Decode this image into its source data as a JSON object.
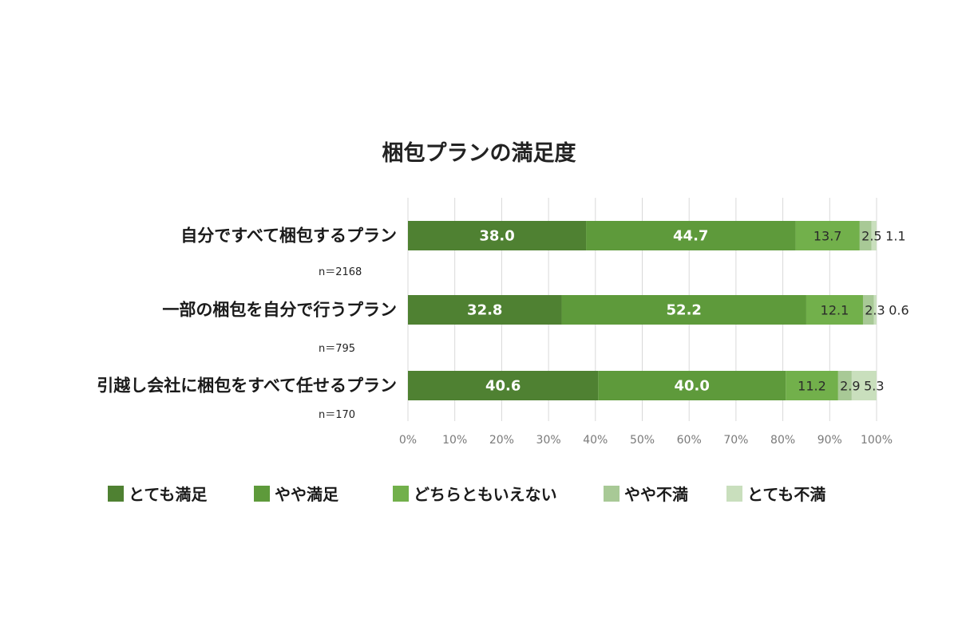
{
  "chart_data": {
    "type": "bar",
    "orientation": "horizontal",
    "stacked": true,
    "title": "梱包プランの満足度",
    "categories": [
      "自分ですべて梱包するプラン",
      "一部の梱包を自分で行うプラン",
      "引越し会社に梱包をすべて任せるプラン"
    ],
    "sample_sizes": [
      "n＝2168",
      "n＝795",
      "n＝170"
    ],
    "series": [
      {
        "name": "とても満足",
        "values": [
          38.0,
          32.8,
          40.6
        ],
        "labels": [
          "38.0",
          "32.8",
          "40.6"
        ],
        "color": "#4f8132"
      },
      {
        "name": "やや満足",
        "values": [
          44.7,
          52.2,
          40.0
        ],
        "labels": [
          "44.7",
          "52.2",
          "40.0"
        ],
        "color": "#5e9a3b"
      },
      {
        "name": "どちらともいえない",
        "values": [
          13.7,
          12.1,
          11.2
        ],
        "labels": [
          "13.7",
          "12.1",
          "11.2"
        ],
        "color": "#72b04b"
      },
      {
        "name": "やや不満",
        "values": [
          2.5,
          2.3,
          2.9
        ],
        "labels": [
          "2.5",
          "2.3",
          "2.9"
        ],
        "color": "#a8c996"
      },
      {
        "name": "とても不満",
        "values": [
          1.1,
          0.6,
          5.3
        ],
        "labels": [
          "1.1",
          "0.6",
          "5.3"
        ],
        "color": "#c9dfbd"
      }
    ],
    "xlim": [
      0,
      100
    ],
    "x_ticks": [
      "0%",
      "10%",
      "20%",
      "30%",
      "40%",
      "50%",
      "60%",
      "70%",
      "80%",
      "90%",
      "100%"
    ],
    "grid": true,
    "legend": "bottom"
  }
}
